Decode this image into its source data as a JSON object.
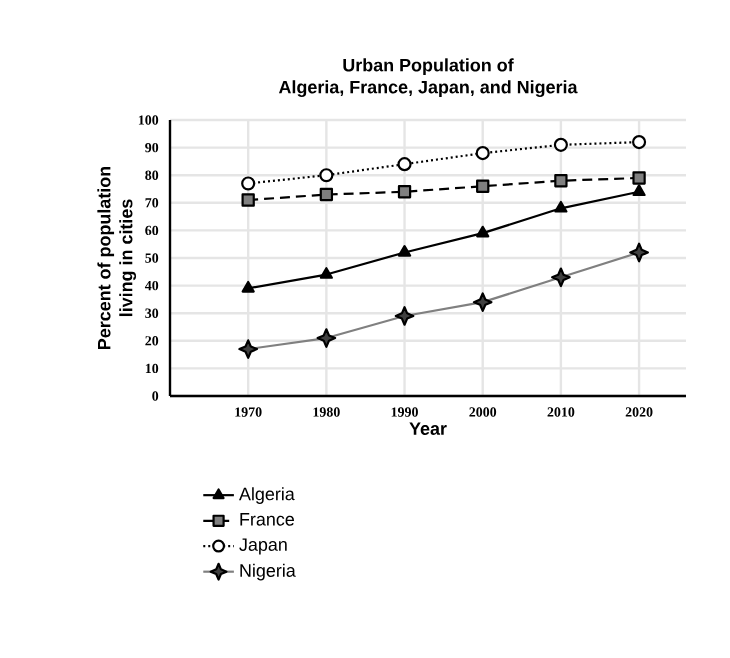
{
  "chart_data": {
    "type": "line",
    "title": "Urban Population of\nAlgeria, France, Japan, and Nigeria",
    "xlabel": "Year",
    "ylabel": "Percent of population\nliving in cities",
    "x": [
      1970,
      1980,
      1990,
      2000,
      2010,
      2020
    ],
    "series": [
      {
        "name": "Algeria",
        "color": "#000000",
        "marker": "triangle",
        "line_style": "solid",
        "values": [
          39,
          44,
          52,
          59,
          68,
          74
        ]
      },
      {
        "name": "France",
        "color": "#000000",
        "marker": "square",
        "line_style": "dashed",
        "values": [
          71,
          73,
          74,
          76,
          78,
          79
        ]
      },
      {
        "name": "Japan",
        "color": "#000000",
        "marker": "circle",
        "line_style": "dotted",
        "values": [
          77,
          80,
          84,
          88,
          91,
          92
        ]
      },
      {
        "name": "Nigeria",
        "color": "#808080",
        "marker": "star",
        "line_style": "solid",
        "values": [
          17,
          21,
          29,
          34,
          43,
          52
        ]
      }
    ],
    "xlim": [
      1960,
      2026
    ],
    "ylim": [
      0,
      100
    ],
    "xticks": [
      1970,
      1980,
      1990,
      2000,
      2010,
      2020
    ],
    "yticks": [
      0,
      10,
      20,
      30,
      40,
      50,
      60,
      70,
      80,
      90,
      100
    ],
    "grid": true,
    "legend": "bottom"
  }
}
